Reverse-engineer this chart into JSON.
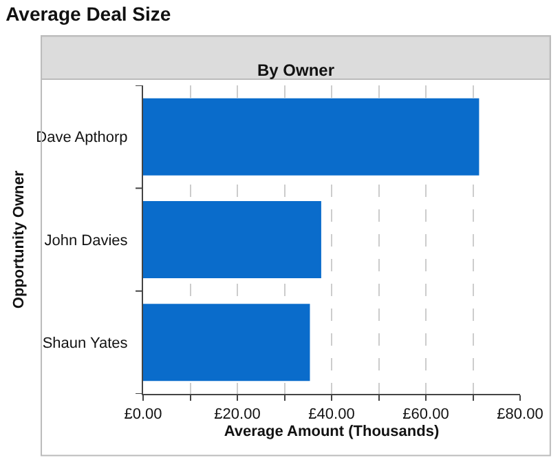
{
  "chart_data": {
    "type": "bar",
    "orientation": "horizontal",
    "title": "Average Deal Size",
    "subtitle": "By Owner",
    "xlabel": "Average Amount (Thousands)",
    "ylabel": "Opportunity Owner",
    "categories": [
      "Dave Apthorp",
      "John Davies",
      "Shaun Yates"
    ],
    "values": [
      71.3,
      37.8,
      35.4
    ],
    "color": "#0a6ccb",
    "xlim": [
      0,
      80
    ],
    "xticks": [
      {
        "value": 0,
        "label": "£0.00"
      },
      {
        "value": 10,
        "label": null
      },
      {
        "value": 20,
        "label": "£20.00"
      },
      {
        "value": 30,
        "label": null
      },
      {
        "value": 40,
        "label": "£40.00"
      },
      {
        "value": 50,
        "label": null
      },
      {
        "value": 60,
        "label": "£60.00"
      },
      {
        "value": 70,
        "label": null
      },
      {
        "value": 80,
        "label": "£80.00"
      }
    ],
    "grid": "x",
    "legend": false
  }
}
